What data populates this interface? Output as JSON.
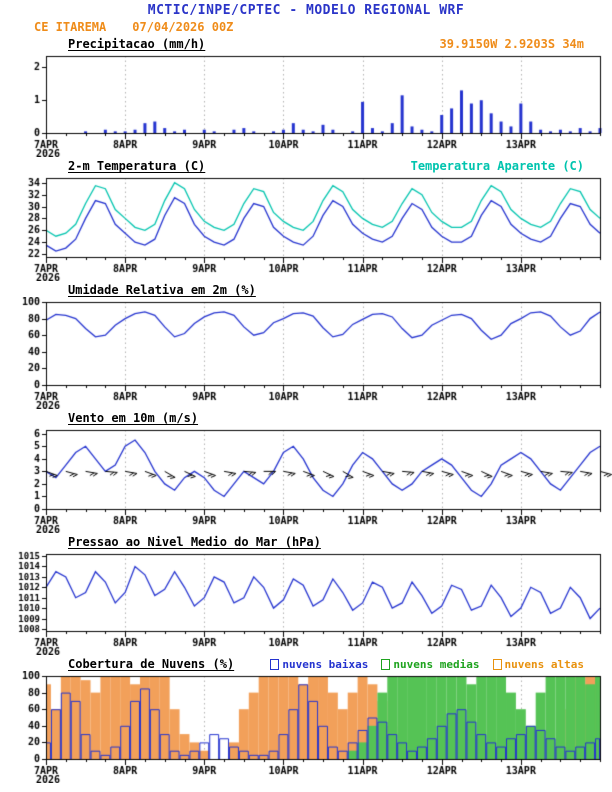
{
  "header": {
    "title": "MCTIC/INPE/CPTEC - MODELO REGIONAL WRF",
    "station": "CE ITAREMA",
    "run": "07/04/2026 00Z",
    "location": "39.9150W 2.9203S 34m"
  },
  "colors": {
    "blue": "#2433cf",
    "cyan": "#00c4ae",
    "green": "#1ea31e",
    "orange": "#ef8c1a",
    "cloud_orange": "#f2a05a",
    "cloud_green": "#55c355",
    "black": "#000000",
    "grid": "#b0b0b0"
  },
  "x_axis": {
    "n_points": 57,
    "step_hours": 3,
    "tick_positions": [
      0,
      8,
      16,
      24,
      32,
      40,
      48
    ],
    "tick_labels": [
      "7APR",
      "8APR",
      "9APR",
      "10APR",
      "11APR",
      "12APR",
      "13APR"
    ],
    "year_label": "2026"
  },
  "chart_data": [
    {
      "type": "bar",
      "title": "Precipitacao (mm/h)",
      "ylim": [
        0,
        2.35
      ],
      "yticks": [
        0,
        1,
        2
      ],
      "series": [
        {
          "name": "precipitacao",
          "color": "blue",
          "style": "bar",
          "values": [
            0,
            0,
            0,
            0,
            0.05,
            0,
            0.1,
            0.05,
            0.05,
            0.1,
            0.3,
            0.35,
            0.15,
            0.05,
            0.1,
            0,
            0.1,
            0.05,
            0,
            0.1,
            0.15,
            0.05,
            0,
            0.05,
            0.1,
            0.3,
            0.1,
            0.05,
            0.25,
            0.1,
            0,
            0.05,
            0.95,
            0.15,
            0.05,
            0.3,
            1.15,
            0.2,
            0.1,
            0.05,
            0.55,
            0.75,
            1.3,
            0.9,
            1,
            0.6,
            0.35,
            0.2,
            0.9,
            0.35,
            0.1,
            0.05,
            0.1,
            0.05,
            0.15,
            0.05,
            0.15
          ]
        }
      ]
    },
    {
      "type": "line",
      "title": "2-m Temperatura (C)",
      "right_label": "Temperatura Aparente (C)",
      "ylim": [
        21.5,
        34.8
      ],
      "yticks": [
        22,
        24,
        26,
        28,
        30,
        32,
        34
      ],
      "series": [
        {
          "name": "2-m Temperatura",
          "color": "blue",
          "style": "line",
          "values": [
            23.5,
            22.5,
            23,
            24.5,
            28,
            31,
            30.5,
            27,
            25.5,
            24,
            23.5,
            24.5,
            28.5,
            31.5,
            30.5,
            27,
            25,
            24,
            23.5,
            24.5,
            28,
            30.5,
            30,
            26.5,
            25,
            24,
            23.5,
            25,
            28.5,
            31,
            30,
            27,
            25.5,
            24.5,
            24,
            25,
            28,
            30.5,
            29.5,
            26.5,
            25,
            24,
            24,
            25,
            28.5,
            31,
            30,
            27,
            25.5,
            24.5,
            24,
            25,
            28,
            30.5,
            30,
            27,
            25.5
          ]
        },
        {
          "name": "Temperatura Aparente",
          "color": "cyan",
          "style": "line",
          "values": [
            26,
            25,
            25.5,
            27,
            30.5,
            33.5,
            33,
            29.5,
            28,
            26.5,
            26,
            27,
            31,
            34,
            33,
            29.5,
            27.5,
            26.5,
            26,
            27,
            30.5,
            33,
            32.5,
            29,
            27.5,
            26.5,
            26,
            27.5,
            31,
            33.5,
            32.5,
            29.5,
            28,
            27,
            26.5,
            27.5,
            30.5,
            33,
            32,
            29,
            27.5,
            26.5,
            26.5,
            27.5,
            31,
            33.5,
            32.5,
            29.5,
            28,
            27,
            26.5,
            27.5,
            30.5,
            33,
            32.5,
            29.5,
            28
          ]
        }
      ]
    },
    {
      "type": "line",
      "title": "Umidade Relativa em 2m (%)",
      "ylim": [
        0,
        100
      ],
      "yticks": [
        0,
        20,
        40,
        60,
        80,
        100
      ],
      "series": [
        {
          "name": "umidade relativa",
          "color": "blue",
          "style": "line",
          "values": [
            78,
            85,
            84,
            80,
            68,
            58,
            60,
            72,
            80,
            86,
            88,
            84,
            70,
            58,
            62,
            74,
            82,
            87,
            88,
            84,
            70,
            60,
            63,
            75,
            80,
            86,
            87,
            83,
            69,
            58,
            61,
            73,
            79,
            85,
            86,
            82,
            68,
            57,
            60,
            72,
            78,
            84,
            85,
            80,
            66,
            55,
            60,
            74,
            80,
            87,
            88,
            83,
            70,
            60,
            65,
            80,
            88
          ]
        }
      ]
    },
    {
      "type": "line",
      "title": "Vento em 10m (m/s)",
      "ylim": [
        0,
        6.3
      ],
      "yticks": [
        0,
        1,
        2,
        3,
        4,
        5,
        6
      ],
      "series": [
        {
          "name": "vento 10m",
          "color": "blue",
          "style": "line",
          "values": [
            3,
            2.5,
            3.5,
            4.5,
            5,
            4,
            3,
            3.5,
            5,
            5.5,
            4.5,
            3,
            2,
            1.5,
            2.5,
            3,
            2.5,
            1.5,
            1,
            2,
            3,
            2.5,
            2,
            3,
            4.5,
            5,
            4,
            2.5,
            1.5,
            1,
            2,
            3.5,
            4.5,
            4,
            3,
            2,
            1.5,
            2,
            3,
            3.5,
            4,
            3.5,
            2.5,
            1.5,
            1,
            2,
            3.5,
            4,
            4.5,
            4,
            3,
            2,
            1.5,
            2.5,
            3.5,
            4.5,
            5
          ]
        }
      ],
      "barbs": {
        "anchor": 3,
        "dirs": [
          110,
          105,
          100,
          95,
          100,
          110,
          120,
          115,
          110,
          100,
          95,
          90,
          100,
          110,
          115,
          120,
          110,
          100,
          95,
          100,
          105,
          110,
          115,
          110,
          105,
          100,
          95,
          100,
          105
        ]
      }
    },
    {
      "type": "line",
      "title": "Pressao ao Nivel Medio do Mar (hPa)",
      "ylim": [
        1007.8,
        1015.2
      ],
      "yticks": [
        1008,
        1009,
        1010,
        1011,
        1012,
        1013,
        1014,
        1015
      ],
      "series": [
        {
          "name": "pressao nivel medio mar",
          "color": "blue",
          "style": "line",
          "values": [
            1012,
            1013.5,
            1013,
            1011,
            1011.5,
            1013.5,
            1012.5,
            1010.5,
            1011.5,
            1014,
            1013.2,
            1011.2,
            1011.8,
            1013.5,
            1012,
            1010.2,
            1011,
            1013,
            1012.5,
            1010.5,
            1011,
            1013,
            1012,
            1010,
            1010.8,
            1012.8,
            1012.2,
            1010.2,
            1010.8,
            1012.8,
            1011.5,
            1009.8,
            1010.5,
            1012.5,
            1012,
            1010,
            1010.5,
            1012.5,
            1011.2,
            1009.5,
            1010.2,
            1012.2,
            1011.8,
            1009.8,
            1010.2,
            1012.2,
            1011,
            1009.2,
            1010,
            1012,
            1011.5,
            1009.5,
            1010,
            1012,
            1011,
            1009,
            1010
          ]
        }
      ]
    },
    {
      "type": "bar",
      "title": "Cobertura de Nuvens (%)",
      "ylim": [
        0,
        100
      ],
      "yticks": [
        0,
        20,
        40,
        60,
        80,
        100
      ],
      "legend": [
        {
          "label": "nuvens baixas",
          "color": "blue"
        },
        {
          "label": "nuvens medias",
          "color": "green"
        },
        {
          "label": "nuvens altas",
          "color": "orange"
        }
      ],
      "series": [
        {
          "name": "nuvens altas",
          "color": "cloud_orange",
          "style": "fillbar",
          "values": [
            90,
            60,
            100,
            100,
            95,
            80,
            100,
            100,
            100,
            90,
            100,
            100,
            100,
            60,
            30,
            20,
            10,
            0,
            0,
            20,
            60,
            80,
            100,
            100,
            100,
            100,
            90,
            100,
            100,
            80,
            60,
            80,
            100,
            90,
            70,
            40,
            20,
            10,
            0,
            0,
            0,
            0,
            0,
            0,
            0,
            0,
            0,
            0,
            0,
            0,
            0,
            0,
            20,
            60,
            100,
            100,
            100
          ]
        },
        {
          "name": "nuvens medias",
          "color": "cloud_green",
          "style": "fillbar",
          "values": [
            0,
            0,
            0,
            0,
            0,
            0,
            0,
            0,
            0,
            0,
            0,
            0,
            0,
            0,
            0,
            0,
            0,
            0,
            0,
            0,
            0,
            0,
            0,
            0,
            0,
            0,
            0,
            0,
            0,
            0,
            0,
            10,
            20,
            40,
            80,
            100,
            100,
            100,
            100,
            100,
            100,
            100,
            100,
            90,
            100,
            100,
            100,
            80,
            60,
            40,
            80,
            100,
            100,
            100,
            100,
            90,
            100
          ]
        },
        {
          "name": "nuvens baixas",
          "color": "blue",
          "style": "outlinebar",
          "values": [
            20,
            60,
            80,
            70,
            30,
            10,
            5,
            15,
            40,
            70,
            85,
            60,
            30,
            10,
            5,
            10,
            20,
            30,
            25,
            15,
            10,
            5,
            5,
            10,
            30,
            60,
            90,
            70,
            40,
            15,
            10,
            20,
            35,
            50,
            45,
            30,
            20,
            10,
            15,
            25,
            40,
            55,
            60,
            45,
            30,
            20,
            15,
            25,
            30,
            40,
            35,
            25,
            15,
            10,
            15,
            20,
            25
          ]
        }
      ]
    }
  ]
}
